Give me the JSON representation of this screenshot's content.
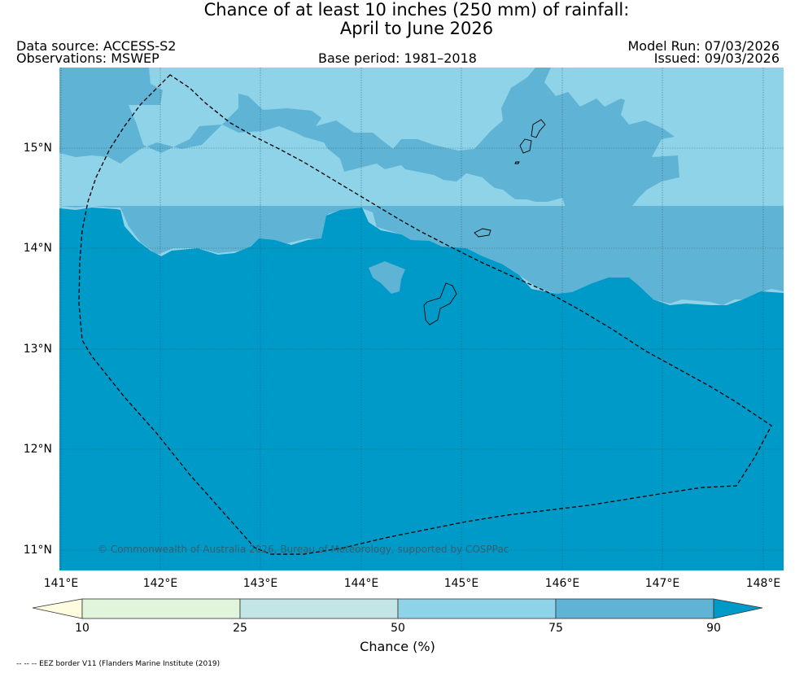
{
  "header": {
    "title_line1": "Chance of at least 10 inches (250  mm) of rainfall:",
    "title_line2": "April to June 2026",
    "data_source": "Data source: ACCESS-S2",
    "observations": "Observations: MSWEP",
    "base_period": "Base period: 1981–2018",
    "model_run": "Model Run: 07/03/2026",
    "issued": "Issued: 09/03/2026"
  },
  "map": {
    "lat_labels": [
      "15°N",
      "14°N",
      "13°N",
      "12°N",
      "11°N"
    ],
    "lon_labels": [
      "141°E",
      "142°E",
      "143°E",
      "144°E",
      "145°E",
      "146°E",
      "147°E",
      "148°E"
    ],
    "extent": {
      "lon_min": 141.0,
      "lon_max": 148.2,
      "lat_min": 10.8,
      "lat_max": 15.8
    },
    "copyright": "© Commonwealth of Australia 2026, Bureau of Meteorology, supported by COSPPac",
    "colors": {
      "band_50_75": "#8fd3e8",
      "band_75_90": "#5fb3d4",
      "band_90_plus": "#009ac8"
    }
  },
  "colorbar": {
    "ticks": [
      "10",
      "25",
      "50",
      "75",
      "90"
    ],
    "colors": [
      "#fffce0",
      "#e0f5dc",
      "#c3e5e6",
      "#8fd3e8",
      "#5fb3d4",
      "#009ac8"
    ],
    "label": "Chance (%)"
  },
  "footnote": "-- -- -- EEZ border V11 (Flanders Marine Institute (2019)"
}
